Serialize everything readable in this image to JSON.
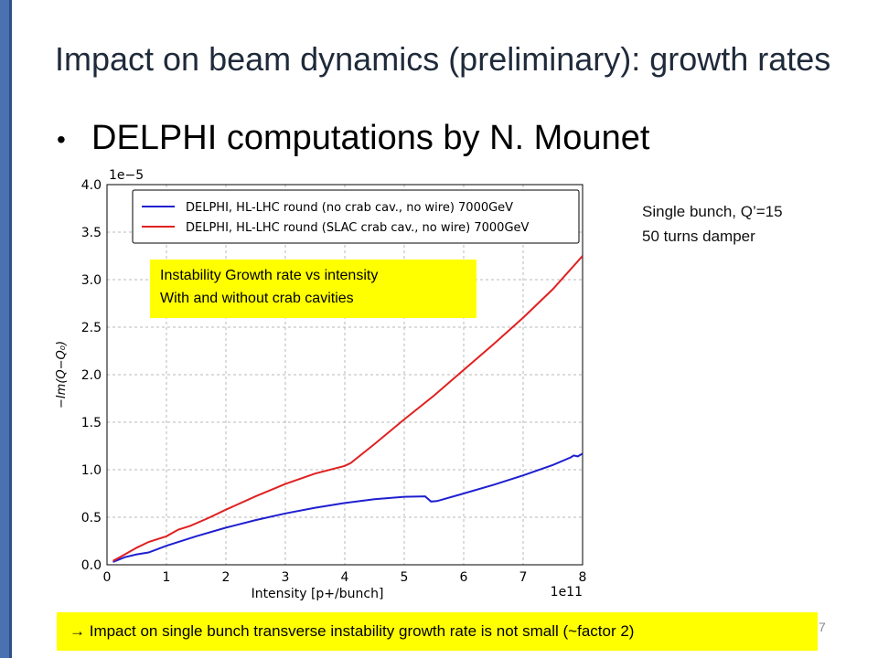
{
  "slide": {
    "title": "Impact on beam dynamics (preliminary): growth rates",
    "bullet": "DELPHI computations by N. Mounet",
    "bullet_symbol": "•",
    "side_note": [
      "Single bunch, Q’=15",
      "50 turns damper"
    ],
    "annotation": [
      "Instability Growth rate vs intensity",
      "With and without crab cavities"
    ],
    "conclusion": "→ Impact on single bunch transverse instability growth rate is not small (~factor 2)",
    "page_number": "7",
    "colors": {
      "accent_bar": "#4a72b0",
      "highlight": "#ffff00"
    }
  },
  "chart_data": {
    "type": "line",
    "title": "",
    "xlabel": "Intensity [p+/bunch]",
    "ylabel": "−Im(Q−Q₀)",
    "x_multiplier_label": "1e11",
    "y_multiplier_label": "1e−5",
    "xlim": [
      0,
      8
    ],
    "ylim": [
      0,
      4
    ],
    "xticks": [
      "0",
      "1",
      "2",
      "3",
      "4",
      "5",
      "6",
      "7",
      "8"
    ],
    "yticks": [
      "0.0",
      "0.5",
      "1.0",
      "1.5",
      "2.0",
      "2.5",
      "3.0",
      "3.5",
      "4.0"
    ],
    "grid": true,
    "legend_position": "top",
    "series": [
      {
        "name": "DELPHI, HL-LHC round (no crab cav., no wire) 7000GeV",
        "color": "#1f1fd0",
        "points": [
          [
            0.1,
            0.03
          ],
          [
            0.3,
            0.08
          ],
          [
            0.5,
            0.11
          ],
          [
            0.7,
            0.13
          ],
          [
            1.0,
            0.2
          ],
          [
            1.5,
            0.3
          ],
          [
            2.0,
            0.39
          ],
          [
            2.5,
            0.47
          ],
          [
            3.0,
            0.54
          ],
          [
            3.5,
            0.6
          ],
          [
            4.0,
            0.65
          ],
          [
            4.5,
            0.69
          ],
          [
            5.0,
            0.715
          ],
          [
            5.35,
            0.72
          ],
          [
            5.45,
            0.665
          ],
          [
            5.55,
            0.67
          ],
          [
            6.0,
            0.75
          ],
          [
            6.5,
            0.84
          ],
          [
            7.0,
            0.94
          ],
          [
            7.5,
            1.05
          ],
          [
            7.8,
            1.13
          ],
          [
            7.85,
            1.15
          ],
          [
            7.92,
            1.14
          ],
          [
            8.0,
            1.17
          ]
        ]
      },
      {
        "name": "DELPHI, HL-LHC round (SLAC crab cav., no wire) 7000GeV",
        "color": "#e02020",
        "points": [
          [
            0.1,
            0.04
          ],
          [
            0.3,
            0.11
          ],
          [
            0.5,
            0.18
          ],
          [
            0.7,
            0.24
          ],
          [
            1.0,
            0.3
          ],
          [
            1.2,
            0.37
          ],
          [
            1.4,
            0.41
          ],
          [
            1.7,
            0.49
          ],
          [
            2.0,
            0.58
          ],
          [
            2.5,
            0.72
          ],
          [
            3.0,
            0.85
          ],
          [
            3.5,
            0.96
          ],
          [
            4.0,
            1.04
          ],
          [
            4.1,
            1.07
          ],
          [
            4.5,
            1.27
          ],
          [
            5.0,
            1.53
          ],
          [
            5.5,
            1.78
          ],
          [
            6.0,
            2.05
          ],
          [
            6.5,
            2.32
          ],
          [
            7.0,
            2.6
          ],
          [
            7.5,
            2.9
          ],
          [
            8.0,
            3.25
          ]
        ]
      }
    ]
  }
}
